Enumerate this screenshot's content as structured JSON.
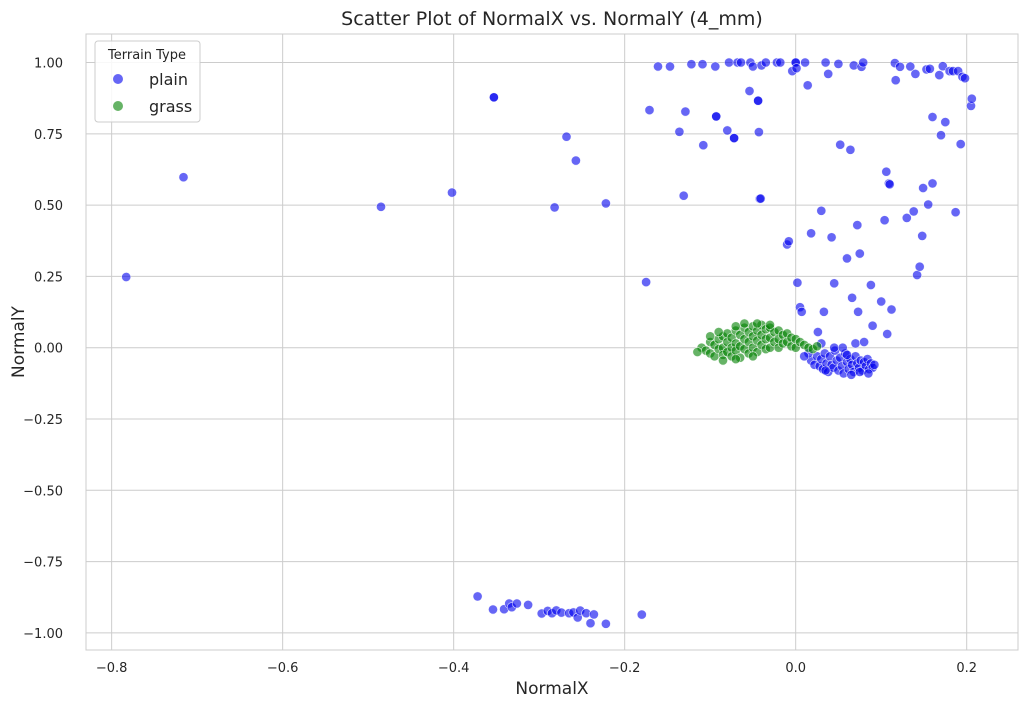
{
  "chart_data": {
    "type": "scatter",
    "title": "Scatter Plot of NormalX vs. NormalY (4_mm)",
    "xlabel": "NormalX",
    "ylabel": "NormalY",
    "xlim": [
      -0.83,
      0.26
    ],
    "ylim": [
      -1.06,
      1.1
    ],
    "xticks": [
      -0.8,
      -0.6,
      -0.4,
      -0.2,
      0.0,
      0.2
    ],
    "xtick_labels": [
      "−0.8",
      "−0.6",
      "−0.4",
      "−0.2",
      "0.0",
      "0.2"
    ],
    "yticks": [
      1.0,
      0.75,
      0.5,
      0.25,
      0.0,
      -0.25,
      -0.5,
      -0.75,
      -1.0
    ],
    "ytick_labels": [
      "1.00",
      "0.75",
      "0.50",
      "0.25",
      "0.00",
      "−0.25",
      "−0.50",
      "−0.75",
      "−1.00"
    ],
    "grid": true,
    "legend": {
      "title": "Terrain Type",
      "placement": "top-left",
      "entries": [
        "plain",
        "grass"
      ]
    },
    "series": [
      {
        "name": "plain",
        "color": "#0000ee",
        "points": [
          [
            -0.783,
            0.248
          ],
          [
            -0.716,
            0.598
          ],
          [
            -0.485,
            0.494
          ],
          [
            -0.402,
            0.544
          ],
          [
            -0.353,
            0.878
          ],
          [
            -0.353,
            0.878
          ],
          [
            -0.282,
            0.492
          ],
          [
            -0.268,
            0.74
          ],
          [
            -0.257,
            0.656
          ],
          [
            -0.222,
            0.506
          ],
          [
            -0.175,
            0.23
          ],
          [
            -0.171,
            0.833
          ],
          [
            -0.161,
            0.986
          ],
          [
            -0.147,
            0.986
          ],
          [
            -0.136,
            0.757
          ],
          [
            -0.131,
            0.533
          ],
          [
            -0.129,
            0.828
          ],
          [
            -0.122,
            0.994
          ],
          [
            -0.109,
            0.994
          ],
          [
            -0.108,
            0.71
          ],
          [
            -0.094,
            0.986
          ],
          [
            -0.093,
            0.811
          ],
          [
            -0.093,
            0.811
          ],
          [
            -0.08,
            0.762
          ],
          [
            -0.078,
            1.0
          ],
          [
            -0.072,
            0.735
          ],
          [
            -0.072,
            0.735
          ],
          [
            -0.068,
            1.0
          ],
          [
            -0.064,
            1.0
          ],
          [
            -0.054,
            0.9
          ],
          [
            -0.053,
            1.0
          ],
          [
            -0.05,
            0.986
          ],
          [
            -0.044,
            0.866
          ],
          [
            -0.044,
            0.866
          ],
          [
            -0.043,
            0.756
          ],
          [
            -0.042,
            0.522
          ],
          [
            -0.041,
            0.523
          ],
          [
            -0.04,
            0.99
          ],
          [
            -0.035,
            1.0
          ],
          [
            -0.022,
            1.0
          ],
          [
            -0.018,
            1.0
          ],
          [
            -0.01,
            0.362
          ],
          [
            -0.008,
            0.373
          ],
          [
            -0.004,
            0.97
          ],
          [
            0.0,
            1.0
          ],
          [
            0.0,
            1.0
          ],
          [
            0.001,
            0.98
          ],
          [
            0.002,
            0.228
          ],
          [
            0.005,
            0.142
          ],
          [
            0.007,
            0.126
          ],
          [
            0.011,
            1.0
          ],
          [
            0.014,
            0.92
          ],
          [
            0.018,
            0.401
          ],
          [
            0.026,
            0.055
          ],
          [
            0.03,
            0.48
          ],
          [
            0.033,
            0.126
          ],
          [
            0.035,
            1.0
          ],
          [
            0.038,
            0.96
          ],
          [
            0.042,
            0.387
          ],
          [
            0.045,
            0.226
          ],
          [
            0.05,
            0.995
          ],
          [
            0.052,
            0.712
          ],
          [
            0.06,
            0.313
          ],
          [
            0.064,
            0.694
          ],
          [
            0.066,
            0.175
          ],
          [
            0.068,
            0.99
          ],
          [
            0.072,
            0.43
          ],
          [
            0.073,
            0.126
          ],
          [
            0.075,
            0.33
          ],
          [
            0.077,
            0.985
          ],
          [
            0.079,
            1.0
          ],
          [
            0.088,
            0.22
          ],
          [
            0.09,
            0.077
          ],
          [
            0.1,
            0.162
          ],
          [
            0.104,
            0.447
          ],
          [
            0.106,
            0.617
          ],
          [
            0.107,
            0.048
          ],
          [
            0.109,
            0.576
          ],
          [
            0.11,
            0.573
          ],
          [
            0.112,
            0.134
          ],
          [
            0.116,
            0.998
          ],
          [
            0.117,
            0.938
          ],
          [
            0.122,
            0.985
          ],
          [
            0.13,
            0.455
          ],
          [
            0.134,
            0.986
          ],
          [
            0.138,
            0.478
          ],
          [
            0.14,
            0.96
          ],
          [
            0.142,
            0.255
          ],
          [
            0.145,
            0.284
          ],
          [
            0.148,
            0.392
          ],
          [
            0.149,
            0.56
          ],
          [
            0.153,
            0.976
          ],
          [
            0.155,
            0.502
          ],
          [
            0.157,
            0.978
          ],
          [
            0.16,
            0.809
          ],
          [
            0.16,
            0.576
          ],
          [
            0.168,
            0.956
          ],
          [
            0.17,
            0.745
          ],
          [
            0.172,
            0.987
          ],
          [
            0.175,
            0.791
          ],
          [
            0.18,
            0.97
          ],
          [
            0.184,
            0.97
          ],
          [
            0.187,
            0.475
          ],
          [
            0.19,
            0.97
          ],
          [
            0.193,
            0.714
          ],
          [
            0.195,
            0.95
          ],
          [
            0.198,
            0.945
          ],
          [
            0.205,
            0.848
          ],
          [
            0.206,
            0.873
          ],
          [
            -0.372,
            -0.872
          ],
          [
            -0.354,
            -0.918
          ],
          [
            -0.341,
            -0.917
          ],
          [
            -0.335,
            -0.897
          ],
          [
            -0.332,
            -0.91
          ],
          [
            -0.326,
            -0.897
          ],
          [
            -0.313,
            -0.902
          ],
          [
            -0.297,
            -0.932
          ],
          [
            -0.29,
            -0.923
          ],
          [
            -0.285,
            -0.931
          ],
          [
            -0.28,
            -0.921
          ],
          [
            -0.274,
            -0.929
          ],
          [
            -0.265,
            -0.931
          ],
          [
            -0.26,
            -0.928
          ],
          [
            -0.255,
            -0.946
          ],
          [
            -0.252,
            -0.922
          ],
          [
            -0.245,
            -0.931
          ],
          [
            -0.24,
            -0.966
          ],
          [
            -0.236,
            -0.935
          ],
          [
            -0.222,
            -0.968
          ],
          [
            -0.18,
            -0.936
          ],
          [
            0.018,
            -0.045
          ],
          [
            0.022,
            -0.06
          ],
          [
            0.025,
            -0.03
          ],
          [
            0.028,
            -0.065
          ],
          [
            0.03,
            -0.04
          ],
          [
            0.032,
            -0.075
          ],
          [
            0.034,
            -0.02
          ],
          [
            0.036,
            -0.055
          ],
          [
            0.038,
            -0.085
          ],
          [
            0.04,
            -0.03
          ],
          [
            0.042,
            -0.06
          ],
          [
            0.044,
            -0.07
          ],
          [
            0.046,
            -0.01
          ],
          [
            0.048,
            -0.045
          ],
          [
            0.05,
            -0.08
          ],
          [
            0.052,
            -0.035
          ],
          [
            0.054,
            -0.065
          ],
          [
            0.056,
            -0.09
          ],
          [
            0.058,
            -0.02
          ],
          [
            0.06,
            -0.05
          ],
          [
            0.062,
            -0.075
          ],
          [
            0.064,
            -0.04
          ],
          [
            0.066,
            -0.06
          ],
          [
            0.068,
            -0.085
          ],
          [
            0.07,
            -0.03
          ],
          [
            0.072,
            -0.055
          ],
          [
            0.074,
            -0.07
          ],
          [
            0.076,
            -0.045
          ],
          [
            0.078,
            -0.08
          ],
          [
            0.08,
            -0.05
          ],
          [
            0.082,
            -0.065
          ],
          [
            0.084,
            -0.04
          ],
          [
            0.086,
            -0.075
          ],
          [
            0.088,
            -0.055
          ],
          [
            0.09,
            -0.07
          ],
          [
            0.092,
            -0.06
          ],
          [
            0.045,
            0.0
          ],
          [
            0.055,
            0.0
          ],
          [
            0.07,
            0.015
          ],
          [
            0.08,
            0.02
          ],
          [
            0.03,
            0.015
          ],
          [
            0.015,
            -0.02
          ],
          [
            0.01,
            -0.03
          ],
          [
            0.06,
            -0.025
          ],
          [
            0.035,
            -0.08
          ],
          [
            0.065,
            -0.095
          ],
          [
            0.075,
            -0.085
          ],
          [
            0.085,
            -0.09
          ]
        ]
      },
      {
        "name": "grass",
        "color": "#008000",
        "points": [
          [
            -0.11,
            0.0
          ],
          [
            -0.105,
            -0.01
          ],
          [
            -0.1,
            0.02
          ],
          [
            -0.1,
            -0.02
          ],
          [
            -0.095,
            0.01
          ],
          [
            -0.095,
            -0.03
          ],
          [
            -0.09,
            0.03
          ],
          [
            -0.09,
            -0.005
          ],
          [
            -0.085,
            0.04
          ],
          [
            -0.085,
            0.0
          ],
          [
            -0.085,
            -0.025
          ],
          [
            -0.08,
            0.02
          ],
          [
            -0.08,
            -0.015
          ],
          [
            -0.08,
            0.05
          ],
          [
            -0.075,
            0.035
          ],
          [
            -0.075,
            0.0
          ],
          [
            -0.075,
            -0.03
          ],
          [
            -0.07,
            0.06
          ],
          [
            -0.07,
            0.015
          ],
          [
            -0.07,
            -0.01
          ],
          [
            -0.065,
            0.045
          ],
          [
            -0.065,
            0.005
          ],
          [
            -0.065,
            -0.035
          ],
          [
            -0.06,
            0.07
          ],
          [
            -0.06,
            0.03
          ],
          [
            -0.06,
            -0.005
          ],
          [
            -0.055,
            0.055
          ],
          [
            -0.055,
            0.02
          ],
          [
            -0.055,
            -0.02
          ],
          [
            -0.05,
            0.075
          ],
          [
            -0.05,
            0.04
          ],
          [
            -0.05,
            0.0
          ],
          [
            -0.045,
            0.06
          ],
          [
            -0.045,
            0.025
          ],
          [
            -0.045,
            -0.015
          ],
          [
            -0.04,
            0.08
          ],
          [
            -0.04,
            0.045
          ],
          [
            -0.04,
            0.01
          ],
          [
            -0.035,
            0.065
          ],
          [
            -0.035,
            0.03
          ],
          [
            -0.035,
            -0.005
          ],
          [
            -0.03,
            0.07
          ],
          [
            -0.03,
            0.035
          ],
          [
            -0.03,
            0.0
          ],
          [
            -0.025,
            0.055
          ],
          [
            -0.025,
            0.02
          ],
          [
            -0.02,
            0.06
          ],
          [
            -0.02,
            0.03
          ],
          [
            -0.02,
            0.0
          ],
          [
            -0.015,
            0.045
          ],
          [
            -0.015,
            0.015
          ],
          [
            -0.01,
            0.05
          ],
          [
            -0.01,
            0.02
          ],
          [
            -0.005,
            0.035
          ],
          [
            -0.005,
            0.005
          ],
          [
            0.0,
            0.03
          ],
          [
            0.0,
            0.0
          ],
          [
            0.005,
            0.02
          ],
          [
            0.01,
            0.01
          ],
          [
            0.015,
            0.0
          ],
          [
            0.02,
            -0.005
          ],
          [
            0.025,
            0.005
          ],
          [
            -0.115,
            -0.015
          ],
          [
            -0.1,
            0.04
          ],
          [
            -0.09,
            0.055
          ],
          [
            -0.07,
            0.075
          ],
          [
            -0.06,
            0.085
          ],
          [
            -0.045,
            0.085
          ],
          [
            -0.03,
            0.08
          ],
          [
            -0.085,
            -0.045
          ],
          [
            -0.07,
            -0.04
          ],
          [
            -0.05,
            -0.03
          ]
        ]
      }
    ]
  }
}
